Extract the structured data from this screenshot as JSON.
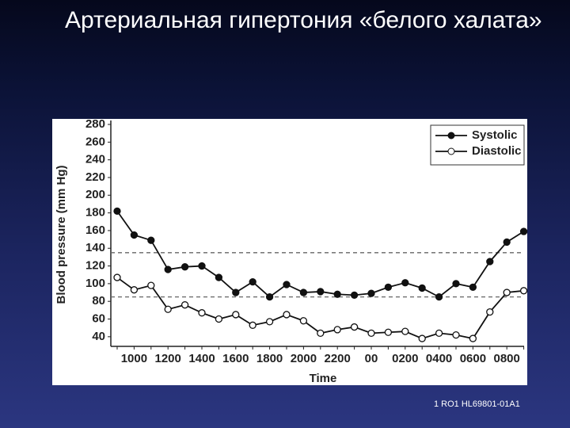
{
  "title": "Артериальная гипертония «белого халата»",
  "footer": "1 RO1 HL69801-01A1",
  "chart_data": {
    "type": "line",
    "y_label": "Blood pressure (mm Hg)",
    "x_label": "Time",
    "categories": [
      null,
      "1000",
      null,
      "1200",
      null,
      "1400",
      null,
      "1600",
      null,
      "1800",
      null,
      "2000",
      null,
      "2200",
      null,
      "00",
      null,
      "0200",
      null,
      "0400",
      null,
      "0600",
      null,
      "0800",
      null
    ],
    "series": [
      {
        "name": "Systolic",
        "color": "#111111",
        "marker": "filled",
        "values": [
          182,
          155,
          149,
          116,
          119,
          120,
          107,
          90,
          102,
          85,
          99,
          90,
          91,
          88,
          87,
          89,
          96,
          101,
          95,
          85,
          100,
          96,
          125,
          147,
          159
        ]
      },
      {
        "name": "Diastolic",
        "color": "#111111",
        "marker": "open",
        "values": [
          107,
          93,
          98,
          71,
          76,
          67,
          60,
          65,
          53,
          57,
          65,
          58,
          44,
          48,
          51,
          44,
          45,
          46,
          38,
          44,
          42,
          38,
          68,
          90,
          92
        ]
      }
    ],
    "reference_lines": [
      135,
      85
    ],
    "ylim": [
      30,
      280
    ],
    "yticks": [
      40,
      60,
      80,
      100,
      120,
      140,
      160,
      180,
      200,
      220,
      240,
      260,
      280
    ],
    "legend": "upper right"
  }
}
